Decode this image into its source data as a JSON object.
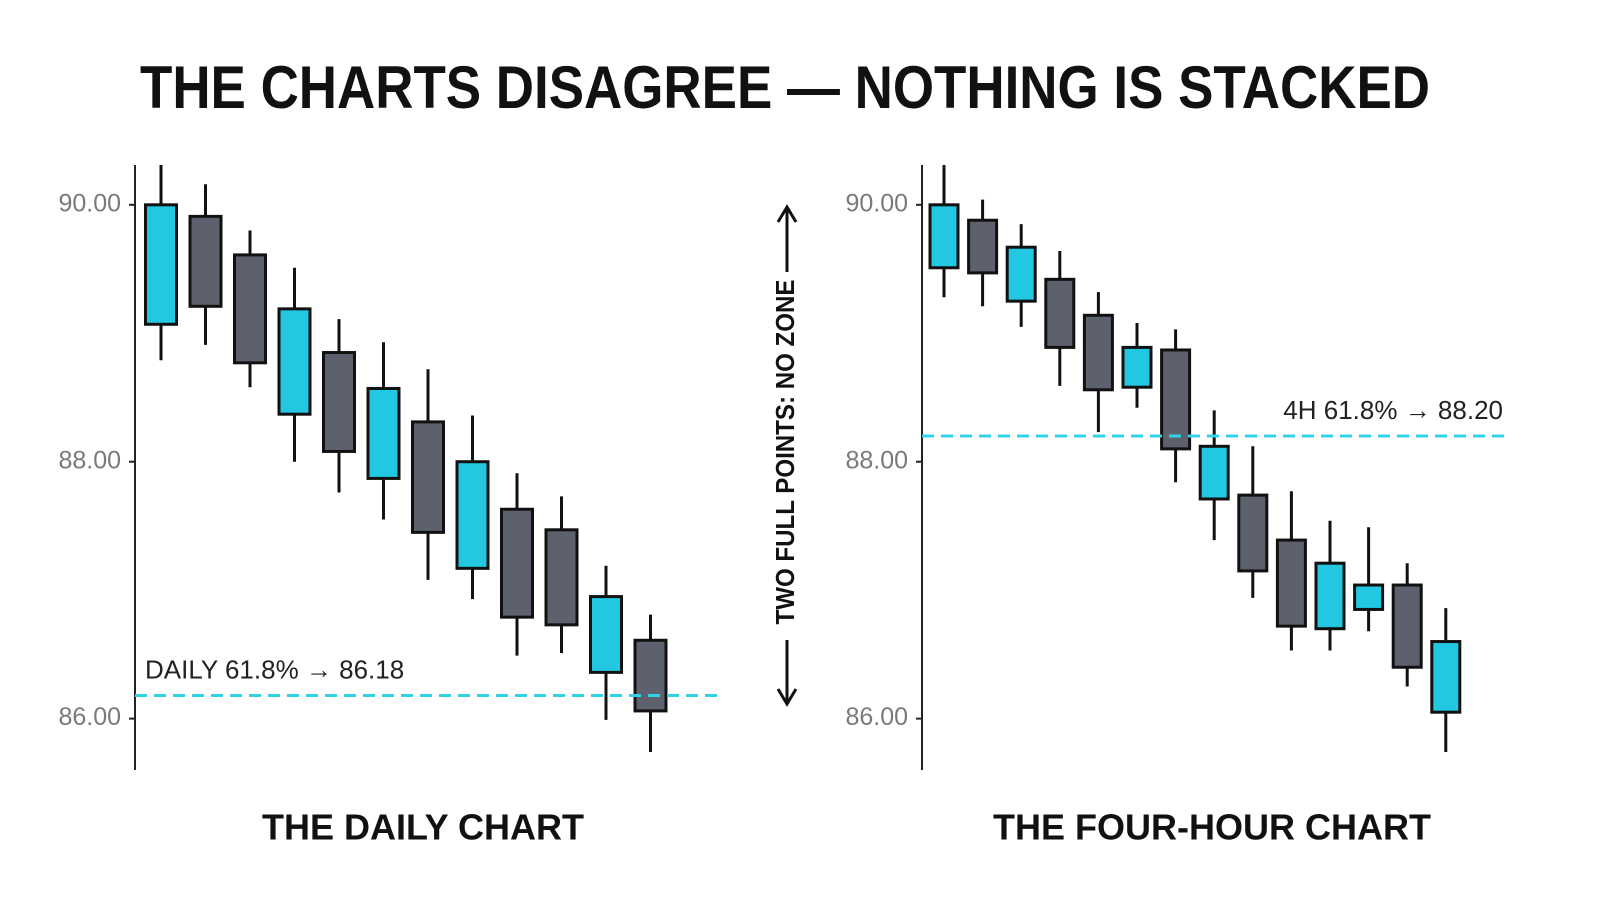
{
  "title": "THE CHARTS DISAGREE — NOTHING IS STACKED",
  "annotation": "TWO FULL POINTS: NO ZONE",
  "chart_data": [
    {
      "type": "candlestick",
      "title": "THE DAILY CHART",
      "open": [
        89.07,
        89.91,
        89.61,
        88.37,
        88.85,
        87.87,
        88.31,
        87.17,
        87.63,
        87.47,
        86.36,
        86.61
      ],
      "high": [
        90.31,
        90.16,
        89.8,
        89.51,
        89.11,
        88.93,
        88.72,
        88.36,
        87.91,
        87.73,
        87.19,
        86.81
      ],
      "low": [
        88.79,
        88.91,
        88.58,
        88.0,
        87.76,
        87.55,
        87.08,
        86.93,
        86.49,
        86.51,
        85.99,
        85.74
      ],
      "close": [
        90.0,
        89.21,
        88.77,
        89.19,
        88.08,
        88.57,
        87.45,
        88.0,
        86.79,
        86.73,
        86.95,
        86.06
      ],
      "up_color": "#22c8e2",
      "down_color": "#5c616d",
      "ylim": [
        85.6,
        90.31
      ],
      "yticks": [
        {
          "value": 86,
          "label": "86.00"
        },
        {
          "value": 88,
          "label": "88.00"
        },
        {
          "value": 90,
          "label": "90.00"
        }
      ],
      "level": {
        "value": 86.18,
        "label": "DAILY 61.8% → 86.18",
        "color": "#2fd3e8"
      }
    },
    {
      "type": "candlestick",
      "title": "THE FOUR-HOUR CHART",
      "open": [
        89.51,
        89.88,
        89.25,
        89.42,
        89.14,
        88.58,
        88.87,
        87.71,
        87.74,
        87.39,
        86.7,
        86.85,
        87.04,
        86.05
      ],
      "high": [
        90.31,
        90.04,
        89.85,
        89.64,
        89.32,
        89.08,
        89.03,
        88.4,
        88.12,
        87.77,
        87.54,
        87.49,
        87.21,
        86.86
      ],
      "low": [
        89.28,
        89.21,
        89.05,
        88.59,
        88.23,
        88.42,
        87.84,
        87.39,
        86.94,
        86.53,
        86.53,
        86.68,
        86.25,
        85.74
      ],
      "close": [
        90.0,
        89.47,
        89.67,
        88.89,
        88.56,
        88.89,
        88.1,
        88.12,
        87.15,
        86.72,
        87.21,
        87.04,
        86.4,
        86.6
      ],
      "up_color": "#22c8e2",
      "down_color": "#5c616d",
      "ylim": [
        85.6,
        90.31
      ],
      "yticks": [
        {
          "value": 86,
          "label": "86.00"
        },
        {
          "value": 88,
          "label": "88.00"
        },
        {
          "value": 90,
          "label": "90.00"
        }
      ],
      "level": {
        "value": 88.2,
        "label": "4H 61.8% → 88.20",
        "color": "#2fd3e8"
      }
    }
  ]
}
